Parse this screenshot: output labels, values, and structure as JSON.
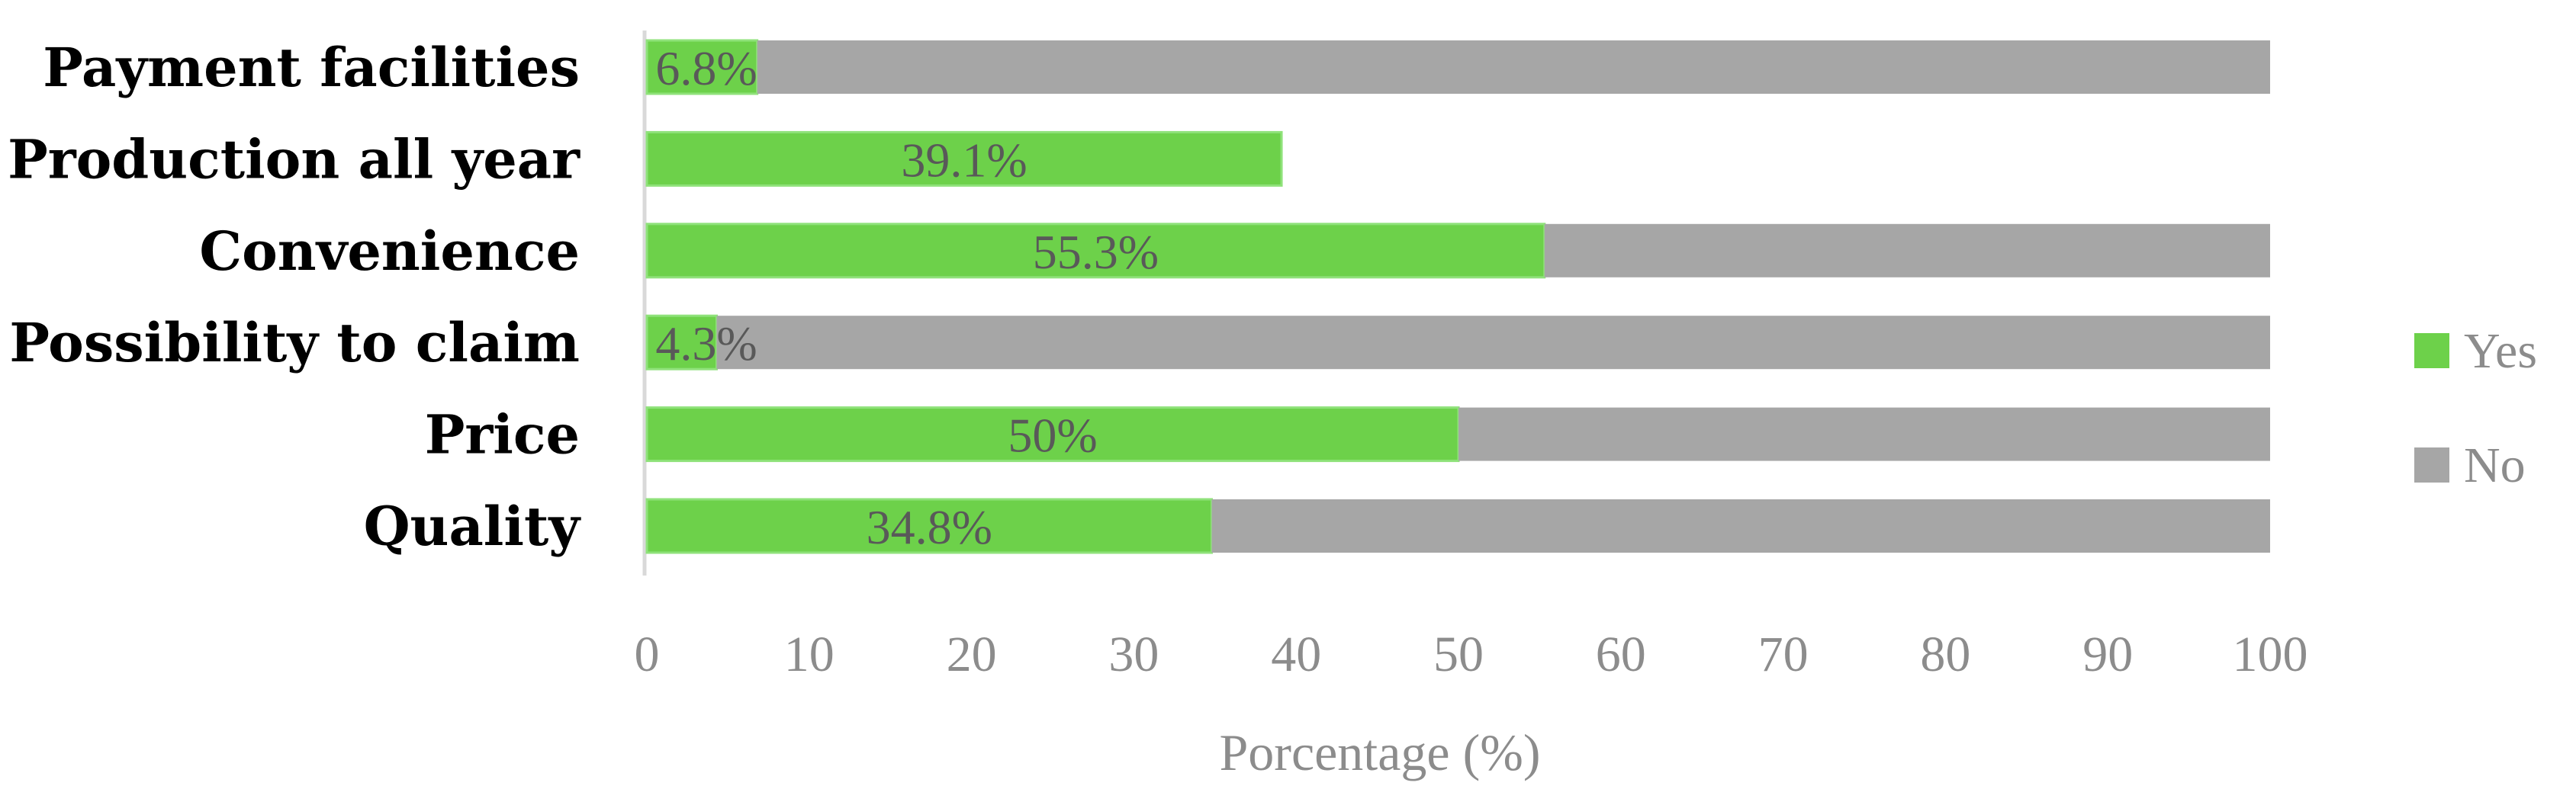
{
  "chart_data": {
    "type": "bar",
    "orientation": "horizontal",
    "stacked": true,
    "categories": [
      "Payment facilities",
      "Production all year",
      "Convenience",
      "Possibility to claim",
      "Price",
      "Quality"
    ],
    "series": [
      {
        "name": "Yes",
        "color": "#6dd14a",
        "values": [
          6.8,
          39.1,
          55.3,
          4.3,
          50,
          34.8
        ]
      },
      {
        "name": "No",
        "color": "#a6a6a6",
        "values": [
          93.2,
          0,
          44.7,
          95.7,
          50,
          65.2
        ]
      }
    ],
    "data_labels": [
      "6.8%",
      "39.1%",
      "55.3%",
      "4.3%",
      "50%",
      "34.8%"
    ],
    "xlabel": "Porcentage (%)",
    "ylabel": "",
    "xlim": [
      0,
      100
    ],
    "xticks": [
      "0",
      "10",
      "20",
      "30",
      "40",
      "50",
      "60",
      "70",
      "80",
      "90",
      "100"
    ],
    "grid": false,
    "legend_position": "right"
  }
}
